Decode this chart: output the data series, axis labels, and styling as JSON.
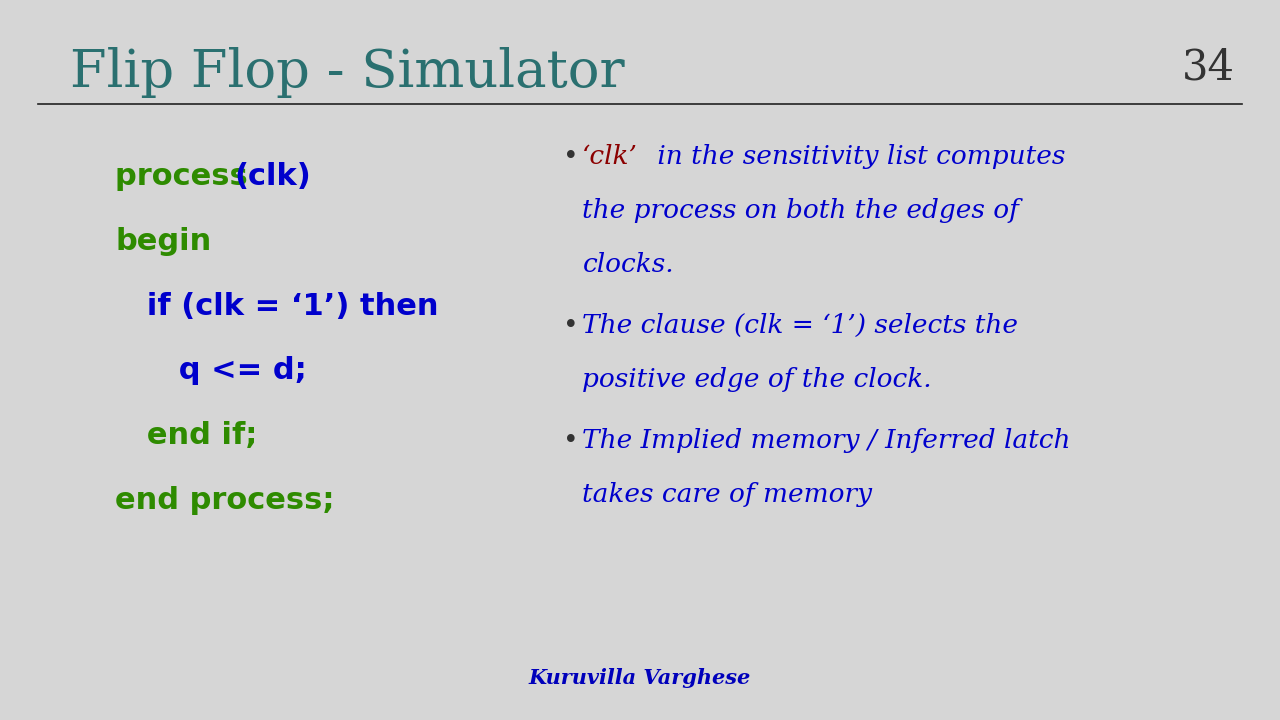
{
  "title": "Flip Flop - Simulator",
  "slide_number": "34",
  "bg_color": "#d6d6d6",
  "title_color": "#2a7070",
  "title_fontsize": 38,
  "slide_num_color": "#333333",
  "slide_num_fontsize": 30,
  "underline_color": "#222222",
  "green": "#2e8b00",
  "blue": "#0000cc",
  "darkred": "#8b0000",
  "code_fontsize": 22,
  "bullet_fontsize": 19,
  "footer_name": "Kuruvilla Varghese",
  "footer_name_color": "#0000bb"
}
